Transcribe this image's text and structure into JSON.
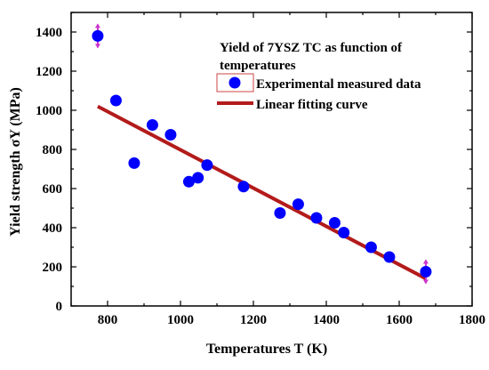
{
  "chart_data": {
    "type": "scatter",
    "title": "",
    "xlabel": "Temperatures T (K)",
    "ylabel": "Yield strength σY (MPa)",
    "xlim": [
      700,
      1800
    ],
    "ylim": [
      0,
      1500
    ],
    "x_ticks": [
      800,
      1000,
      1200,
      1400,
      1600,
      1800
    ],
    "y_ticks": [
      0,
      200,
      400,
      600,
      800,
      1000,
      1200,
      1400
    ],
    "grid": false,
    "legend_placement": "top-right",
    "legend_title": "Yield of 7YSZ TC as function of temperatures",
    "series": [
      {
        "name": "Experimental measured data",
        "kind": "scatter",
        "color": "#0000ff",
        "x": [
          773,
          823,
          873,
          923,
          973,
          1023,
          1048,
          1073,
          1173,
          1273,
          1323,
          1373,
          1423,
          1448,
          1523,
          1573,
          1673
        ],
        "y": [
          1380,
          1050,
          730,
          925,
          875,
          635,
          655,
          720,
          610,
          475,
          520,
          450,
          425,
          375,
          300,
          250,
          175
        ]
      },
      {
        "name": "Linear fitting curve",
        "kind": "line",
        "color": "#b31b1b",
        "x": [
          773,
          1673
        ],
        "y": [
          1020,
          140
        ]
      }
    ],
    "error_bar_color": "#cc33cc"
  }
}
